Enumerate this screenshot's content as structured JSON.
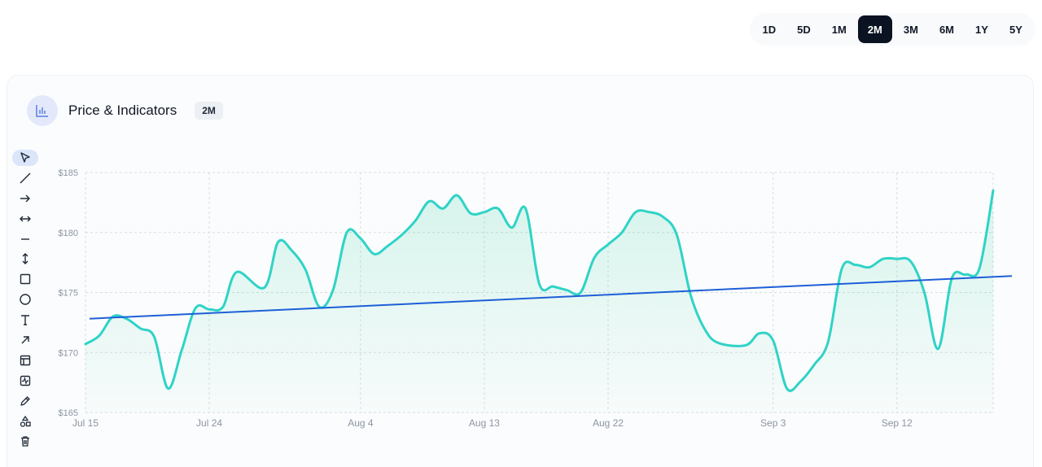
{
  "range_tabs": [
    {
      "label": "1D",
      "active": false
    },
    {
      "label": "5D",
      "active": false
    },
    {
      "label": "1M",
      "active": false
    },
    {
      "label": "2M",
      "active": true
    },
    {
      "label": "3M",
      "active": false
    },
    {
      "label": "6M",
      "active": false
    },
    {
      "label": "1Y",
      "active": false
    },
    {
      "label": "5Y",
      "active": false
    }
  ],
  "card": {
    "title": "Price & Indicators",
    "badge": "2M",
    "icon": "bar-chart-icon"
  },
  "toolbar": [
    {
      "name": "cursor-tool",
      "icon": "cursor-icon",
      "active": true
    },
    {
      "name": "line-tool",
      "icon": "diagonal-line-icon",
      "active": false
    },
    {
      "name": "arrow-tool",
      "icon": "arrow-right-icon",
      "active": false
    },
    {
      "name": "extended-line-tool",
      "icon": "double-arrow-horizontal-icon",
      "active": false
    },
    {
      "name": "horizontal-line-tool",
      "icon": "horizontal-line-icon",
      "active": false
    },
    {
      "name": "vertical-line-tool",
      "icon": "double-arrow-vertical-icon",
      "active": false
    },
    {
      "name": "rectangle-tool",
      "icon": "rectangle-icon",
      "active": false
    },
    {
      "name": "circle-tool",
      "icon": "circle-icon",
      "active": false
    },
    {
      "name": "text-tool",
      "icon": "text-icon",
      "active": false
    },
    {
      "name": "ray-tool",
      "icon": "arrow-up-right-icon",
      "active": false
    },
    {
      "name": "layout-tool",
      "icon": "layout-icon",
      "active": false
    },
    {
      "name": "indicator-tool",
      "icon": "activity-icon",
      "active": false
    },
    {
      "name": "brush-tool",
      "icon": "pen-icon",
      "active": false
    },
    {
      "name": "shapes-tool",
      "icon": "shapes-icon",
      "active": false
    },
    {
      "name": "delete-tool",
      "icon": "trash-icon",
      "active": false
    }
  ],
  "colors": {
    "price_line": "#2fd3c7",
    "area_fill": "#2fcf9a",
    "trend_line": "#1d5fd8",
    "grid": "#d7dce2",
    "active_tab": "#0b1221"
  },
  "chart_data": {
    "type": "area",
    "x_ticks": [
      "Jul 15",
      "Jul 24",
      "Aug 4",
      "Aug 13",
      "Aug 22",
      "Sep 3",
      "Sep 12"
    ],
    "y_ticks": [
      "$165",
      "$170",
      "$175",
      "$180",
      "$185"
    ],
    "ylim": [
      165,
      185
    ],
    "grid": true,
    "series": [
      {
        "kind": "price",
        "values": [
          {
            "date": "Jul 15",
            "y": 170.7
          },
          {
            "date": "Jul 16",
            "y": 171.4
          },
          {
            "date": "Jul 17",
            "y": 173.0
          },
          {
            "date": "Jul 18",
            "y": 172.8
          },
          {
            "date": "Jul 19",
            "y": 172.0
          },
          {
            "date": "Jul 20",
            "y": 171.3
          },
          {
            "date": "Jul 21",
            "y": 167.0
          },
          {
            "date": "Jul 22",
            "y": 170.2
          },
          {
            "date": "Jul 23",
            "y": 173.7
          },
          {
            "date": "Jul 24",
            "y": 173.6
          },
          {
            "date": "Jul 25",
            "y": 173.8
          },
          {
            "date": "Jul 26",
            "y": 176.7
          },
          {
            "date": "Jul 28",
            "y": 175.4
          },
          {
            "date": "Jul 29",
            "y": 179.2
          },
          {
            "date": "Jul 30",
            "y": 178.5
          },
          {
            "date": "Jul 31",
            "y": 176.9
          },
          {
            "date": "Aug 1",
            "y": 173.8
          },
          {
            "date": "Aug 2",
            "y": 175.2
          },
          {
            "date": "Aug 3",
            "y": 180.0
          },
          {
            "date": "Aug 4",
            "y": 179.5
          },
          {
            "date": "Aug 5",
            "y": 178.2
          },
          {
            "date": "Aug 6",
            "y": 178.9
          },
          {
            "date": "Aug 7",
            "y": 179.8
          },
          {
            "date": "Aug 8",
            "y": 181.0
          },
          {
            "date": "Aug 9",
            "y": 182.6
          },
          {
            "date": "Aug 10",
            "y": 182.0
          },
          {
            "date": "Aug 11",
            "y": 183.1
          },
          {
            "date": "Aug 12",
            "y": 181.6
          },
          {
            "date": "Aug 13",
            "y": 181.7
          },
          {
            "date": "Aug 14",
            "y": 182.0
          },
          {
            "date": "Aug 15",
            "y": 180.4
          },
          {
            "date": "Aug 16",
            "y": 182.0
          },
          {
            "date": "Aug 17",
            "y": 175.7
          },
          {
            "date": "Aug 18",
            "y": 175.5
          },
          {
            "date": "Aug 19",
            "y": 175.2
          },
          {
            "date": "Aug 20",
            "y": 175.0
          },
          {
            "date": "Aug 21",
            "y": 177.9
          },
          {
            "date": "Aug 22",
            "y": 179.0
          },
          {
            "date": "Aug 23",
            "y": 180.0
          },
          {
            "date": "Aug 24",
            "y": 181.7
          },
          {
            "date": "Aug 25",
            "y": 181.7
          },
          {
            "date": "Aug 26",
            "y": 181.3
          },
          {
            "date": "Aug 27",
            "y": 179.8
          },
          {
            "date": "Aug 28",
            "y": 174.8
          },
          {
            "date": "Aug 29",
            "y": 172.0
          },
          {
            "date": "Aug 30",
            "y": 170.8
          },
          {
            "date": "Sep 1",
            "y": 170.6
          },
          {
            "date": "Sep 2",
            "y": 171.6
          },
          {
            "date": "Sep 3",
            "y": 171.0
          },
          {
            "date": "Sep 4",
            "y": 167.0
          },
          {
            "date": "Sep 5",
            "y": 167.6
          },
          {
            "date": "Sep 6",
            "y": 169.0
          },
          {
            "date": "Sep 7",
            "y": 170.9
          },
          {
            "date": "Sep 8",
            "y": 177.0
          },
          {
            "date": "Sep 9",
            "y": 177.3
          },
          {
            "date": "Sep 10",
            "y": 177.1
          },
          {
            "date": "Sep 11",
            "y": 177.8
          },
          {
            "date": "Sep 12",
            "y": 177.8
          },
          {
            "date": "Sep 13",
            "y": 177.6
          },
          {
            "date": "Sep 14",
            "y": 175.0
          },
          {
            "date": "Sep 15",
            "y": 170.3
          },
          {
            "date": "Sep 16",
            "y": 176.2
          },
          {
            "date": "Sep 17",
            "y": 176.5
          },
          {
            "date": "Sep 18",
            "y": 177.0
          },
          {
            "date": "Sep 19",
            "y": 183.5
          }
        ]
      },
      {
        "kind": "trend",
        "values": [
          {
            "date": "Jul 15",
            "y": 172.8
          },
          {
            "date": "Sep 19",
            "y": 176.3
          }
        ]
      }
    ]
  }
}
